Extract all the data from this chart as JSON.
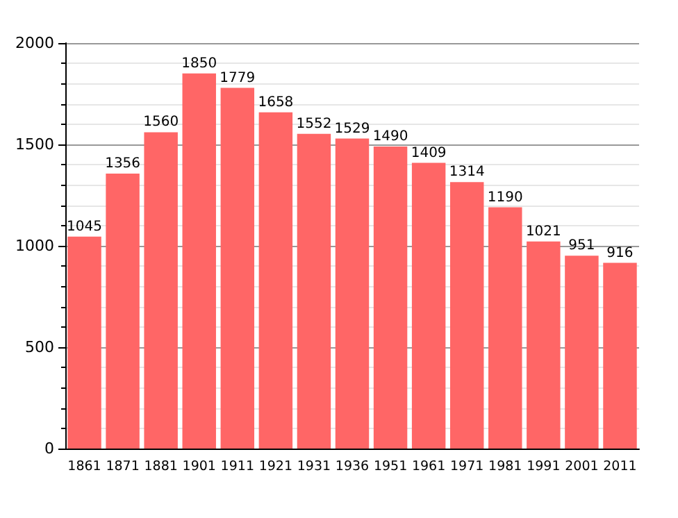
{
  "chart_data": {
    "type": "bar",
    "categories": [
      "1861",
      "1871",
      "1881",
      "1901",
      "1911",
      "1921",
      "1931",
      "1936",
      "1951",
      "1961",
      "1971",
      "1981",
      "1991",
      "2001",
      "2011"
    ],
    "values": [
      1045,
      1356,
      1560,
      1850,
      1779,
      1658,
      1552,
      1529,
      1490,
      1409,
      1314,
      1190,
      1021,
      951,
      916
    ],
    "color": "#ff6666",
    "ylim": [
      0,
      2000
    ],
    "yticks": [
      0,
      500,
      1000,
      1500,
      2000
    ],
    "grid": "y",
    "data_labels": true
  }
}
